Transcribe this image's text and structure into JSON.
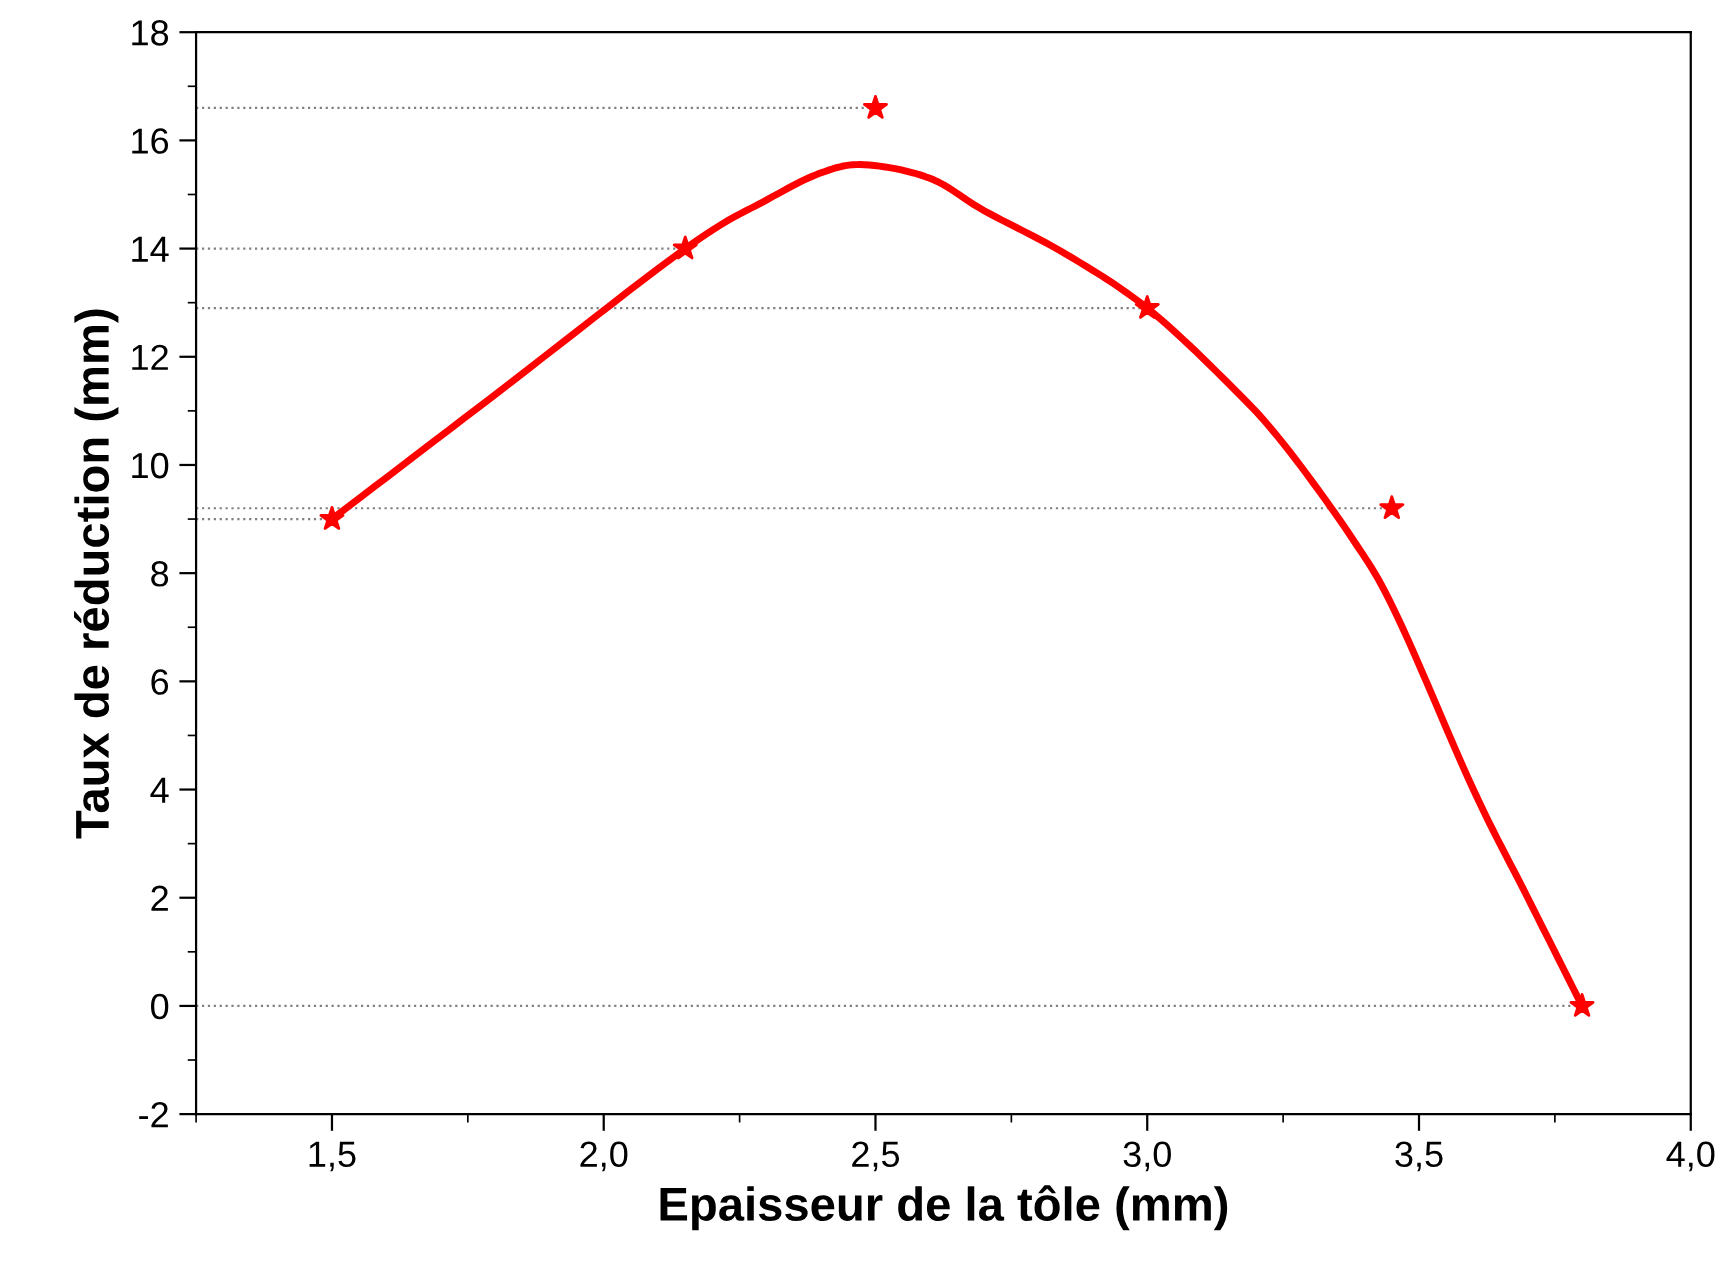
{
  "chart_data": {
    "type": "scatter",
    "xlabel": "Epaisseur de la tôle (mm)",
    "ylabel": "Taux de réduction (mm)",
    "xlim": [
      1.25,
      4.0
    ],
    "ylim": [
      -2,
      18
    ],
    "xticks": [
      {
        "value": 1.5,
        "label": "1,5"
      },
      {
        "value": 2.0,
        "label": "2,0"
      },
      {
        "value": 2.5,
        "label": "2,5"
      },
      {
        "value": 3.0,
        "label": "3,0"
      },
      {
        "value": 3.5,
        "label": "3,5"
      },
      {
        "value": 4.0,
        "label": "4,0"
      }
    ],
    "yticks": [
      -2,
      0,
      2,
      4,
      6,
      8,
      10,
      12,
      14,
      16,
      18
    ],
    "grid": false,
    "series": [
      {
        "color": "#ff0000",
        "marker": "star",
        "x": [
          1.5,
          2.15,
          2.5,
          3.0,
          3.45,
          3.8
        ],
        "values": [
          9.0,
          14.0,
          16.6,
          12.9,
          9.2,
          0.0
        ]
      },
      {
        "type": "line",
        "color": "#ff0000",
        "line_style": "solid",
        "x": [
          1.5,
          1.8,
          2.15,
          2.3,
          2.4,
          2.48,
          2.6,
          2.7,
          2.85,
          3.0,
          3.15,
          3.25,
          3.38,
          3.46,
          3.6,
          3.7,
          3.8
        ],
        "values": [
          9.0,
          11.3,
          14.0,
          14.9,
          15.4,
          15.55,
          15.3,
          14.7,
          13.9,
          12.9,
          11.5,
          10.4,
          8.6,
          7.2,
          4.0,
          2.0,
          0.0
        ]
      }
    ],
    "ref_lines": [
      {
        "axis": "y",
        "value": 16.6,
        "color": "#808080",
        "line_style": "dotted"
      },
      {
        "axis": "y",
        "value": 14.0,
        "color": "#808080",
        "line_style": "dotted"
      },
      {
        "axis": "y",
        "value": 12.9,
        "color": "#808080",
        "line_style": "dotted"
      },
      {
        "axis": "y",
        "value": 9.2,
        "color": "#808080",
        "line_style": "dotted"
      },
      {
        "axis": "y",
        "value": 9.0,
        "color": "#808080",
        "line_style": "dotted"
      },
      {
        "axis": "y",
        "value": 0.0,
        "color": "#808080",
        "line_style": "dotted"
      }
    ]
  }
}
